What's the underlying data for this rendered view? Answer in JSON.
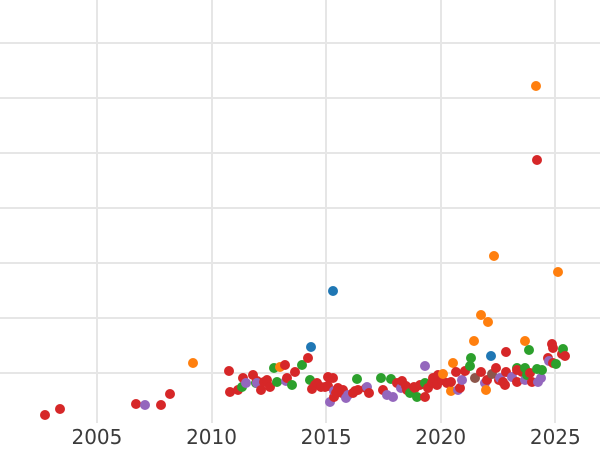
{
  "chart_data": {
    "type": "scatter",
    "title": "",
    "xlabel": "",
    "ylabel": "",
    "legend": false,
    "grid": true,
    "xlim": [
      2000.77,
      2026.95
    ],
    "ylim": [
      0.09,
      7.78
    ],
    "x_ticks": [
      2005,
      2010,
      2015,
      2020,
      2025
    ],
    "x_tick_labels": [
      "2005",
      "2010",
      "2015",
      "2020",
      "2025"
    ],
    "y_gridline_values": [
      1,
      2,
      3,
      4,
      5,
      6,
      7
    ],
    "series": [
      {
        "name": "blue",
        "color": "#1f77b4",
        "points": [
          [
            2015.31,
            2.49
          ],
          [
            2014.34,
            1.47
          ],
          [
            2022.2,
            1.31
          ]
        ]
      },
      {
        "name": "orange",
        "color": "#ff7f0e",
        "points": [
          [
            2009.19,
            1.18
          ],
          [
            2012.99,
            1.11
          ],
          [
            2020.11,
            0.98
          ],
          [
            2020.55,
            1.18
          ],
          [
            2020.46,
            0.67
          ],
          [
            2021.99,
            0.69
          ],
          [
            2021.46,
            1.58
          ],
          [
            2021.77,
            2.05
          ],
          [
            2022.07,
            1.93
          ],
          [
            2023.69,
            1.58
          ],
          [
            2024.17,
            6.22
          ],
          [
            2022.34,
            3.13
          ],
          [
            2025.13,
            2.84
          ]
        ]
      },
      {
        "name": "green",
        "color": "#2ca02c",
        "points": [
          [
            2011.33,
            0.75
          ],
          [
            2011.94,
            0.82
          ],
          [
            2012.73,
            1.09
          ],
          [
            2012.86,
            0.84
          ],
          [
            2013.52,
            0.78
          ],
          [
            2013.95,
            1.15
          ],
          [
            2014.3,
            0.87
          ],
          [
            2016.35,
            0.89
          ],
          [
            2017.4,
            0.91
          ],
          [
            2017.84,
            0.89
          ],
          [
            2018.67,
            0.64
          ],
          [
            2018.97,
            0.56
          ],
          [
            2019.32,
            0.82
          ],
          [
            2021.29,
            1.13
          ],
          [
            2021.33,
            1.27
          ],
          [
            2023.34,
            1.09
          ],
          [
            2023.69,
            1.09
          ],
          [
            2023.78,
            0.96
          ],
          [
            2023.86,
            1.42
          ],
          [
            2024.21,
            1.07
          ],
          [
            2024.43,
            1.05
          ],
          [
            2025.04,
            1.16
          ],
          [
            2025.35,
            1.44
          ]
        ]
      },
      {
        "name": "red",
        "color": "#d62728",
        "points": [
          [
            2002.73,
            0.24
          ],
          [
            2003.38,
            0.35
          ],
          [
            2006.7,
            0.44
          ],
          [
            2007.79,
            0.42
          ],
          [
            2008.19,
            0.62
          ],
          [
            2010.76,
            1.04
          ],
          [
            2010.81,
            0.65
          ],
          [
            2011.16,
            0.69
          ],
          [
            2011.38,
            0.91
          ],
          [
            2011.81,
            0.96
          ],
          [
            2011.99,
            0.85
          ],
          [
            2012.16,
            0.69
          ],
          [
            2012.29,
            0.84
          ],
          [
            2012.42,
            0.87
          ],
          [
            2012.55,
            0.75
          ],
          [
            2013.21,
            1.15
          ],
          [
            2013.3,
            0.91
          ],
          [
            2013.65,
            1.02
          ],
          [
            2014.21,
            1.27
          ],
          [
            2014.39,
            0.71
          ],
          [
            2014.52,
            0.78
          ],
          [
            2014.61,
            0.82
          ],
          [
            2014.78,
            0.75
          ],
          [
            2014.96,
            0.75
          ],
          [
            2015.09,
            0.93
          ],
          [
            2015.09,
            0.76
          ],
          [
            2015.31,
            0.91
          ],
          [
            2015.35,
            0.56
          ],
          [
            2015.44,
            0.64
          ],
          [
            2015.52,
            0.73
          ],
          [
            2015.7,
            0.64
          ],
          [
            2015.74,
            0.69
          ],
          [
            2016.18,
            0.64
          ],
          [
            2016.27,
            0.67
          ],
          [
            2016.4,
            0.69
          ],
          [
            2016.75,
            0.73
          ],
          [
            2016.88,
            0.64
          ],
          [
            2017.49,
            0.69
          ],
          [
            2018.1,
            0.82
          ],
          [
            2018.32,
            0.85
          ],
          [
            2018.49,
            0.76
          ],
          [
            2018.54,
            0.69
          ],
          [
            2018.84,
            0.75
          ],
          [
            2018.89,
            0.73
          ],
          [
            2019.1,
            0.78
          ],
          [
            2019.32,
            0.56
          ],
          [
            2019.45,
            0.73
          ],
          [
            2019.63,
            0.82
          ],
          [
            2019.67,
            0.91
          ],
          [
            2019.85,
            0.78
          ],
          [
            2019.89,
            0.96
          ],
          [
            2020.07,
            0.87
          ],
          [
            2020.28,
            0.82
          ],
          [
            2020.46,
            0.84
          ],
          [
            2020.68,
            1.02
          ],
          [
            2020.85,
            0.73
          ],
          [
            2021.07,
            1.04
          ],
          [
            2021.77,
            1.02
          ],
          [
            2022.03,
            0.87
          ],
          [
            2022.42,
            1.09
          ],
          [
            2022.55,
            0.87
          ],
          [
            2022.73,
            0.84
          ],
          [
            2022.82,
            0.78
          ],
          [
            2022.86,
            1.02
          ],
          [
            2022.86,
            1.38
          ],
          [
            2023.34,
            1.05
          ],
          [
            2023.34,
            0.84
          ],
          [
            2023.56,
            1.02
          ],
          [
            2023.91,
            1.0
          ],
          [
            2023.99,
            0.84
          ],
          [
            2024.21,
            4.87
          ],
          [
            2024.69,
            1.27
          ],
          [
            2024.87,
            1.53
          ],
          [
            2024.91,
            1.45
          ],
          [
            2024.91,
            1.18
          ],
          [
            2025.31,
            1.35
          ],
          [
            2025.44,
            1.31
          ]
        ]
      },
      {
        "name": "purple",
        "color": "#9467bd",
        "points": [
          [
            2007.1,
            0.42
          ],
          [
            2011.51,
            0.82
          ],
          [
            2011.99,
            0.82
          ],
          [
            2013.25,
            0.85
          ],
          [
            2015.17,
            0.47
          ],
          [
            2015.35,
            0.67
          ],
          [
            2015.87,
            0.55
          ],
          [
            2015.96,
            0.6
          ],
          [
            2016.79,
            0.75
          ],
          [
            2017.66,
            0.6
          ],
          [
            2017.93,
            0.56
          ],
          [
            2018.28,
            0.73
          ],
          [
            2019.32,
            1.13
          ],
          [
            2020.76,
            0.69
          ],
          [
            2020.94,
            0.87
          ],
          [
            2021.94,
            0.82
          ],
          [
            2022.6,
            0.91
          ],
          [
            2023.12,
            0.93
          ],
          [
            2023.69,
            0.87
          ],
          [
            2024.26,
            0.84
          ],
          [
            2024.39,
            0.91
          ],
          [
            2024.74,
            1.22
          ]
        ]
      },
      {
        "name": "brown",
        "color": "#8c564b",
        "points": [
          [
            2021.51,
            0.91
          ],
          [
            2022.25,
            0.98
          ]
        ]
      }
    ]
  },
  "styles": {
    "background": "#ffffff",
    "grid_color": "#e6e6e6",
    "tick_label_color": "#3b3b3b"
  }
}
